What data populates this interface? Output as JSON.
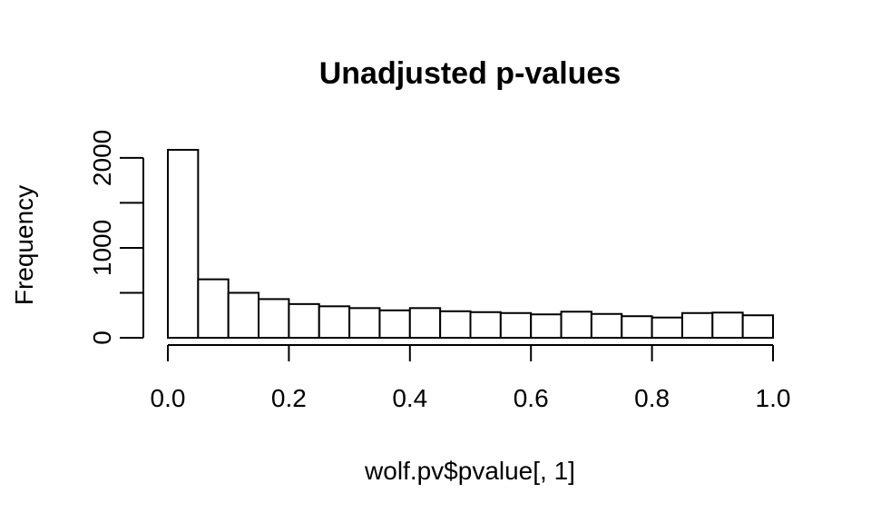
{
  "chart_data": {
    "type": "bar",
    "title": "Unadjusted p-values",
    "xlabel": "wolf.pv$pvalue[, 1]",
    "ylabel": "Frequency",
    "bin_width": 0.05,
    "bin_starts": [
      0.0,
      0.05,
      0.1,
      0.15,
      0.2,
      0.25,
      0.3,
      0.35,
      0.4,
      0.45,
      0.5,
      0.55,
      0.6,
      0.65,
      0.7,
      0.75,
      0.8,
      0.85,
      0.9,
      0.95
    ],
    "values": [
      2090,
      650,
      500,
      430,
      375,
      350,
      330,
      305,
      330,
      295,
      285,
      275,
      260,
      290,
      265,
      240,
      225,
      275,
      280,
      250
    ],
    "xlim": [
      0,
      1
    ],
    "ylim": [
      0,
      2090
    ],
    "x_ticks": [
      "0.0",
      "0.2",
      "0.4",
      "0.6",
      "0.8",
      "1.0"
    ],
    "x_tick_values": [
      0,
      0.2,
      0.4,
      0.6,
      0.8,
      1.0
    ],
    "y_ticks": [
      "0",
      "1000",
      "2000"
    ],
    "y_tick_values": [
      0,
      1000,
      2000
    ],
    "y_minor_tick_values": [
      500,
      1500
    ],
    "grid": false,
    "colors": {
      "bar_fill": "#ffffff",
      "bar_stroke": "#000000"
    }
  }
}
